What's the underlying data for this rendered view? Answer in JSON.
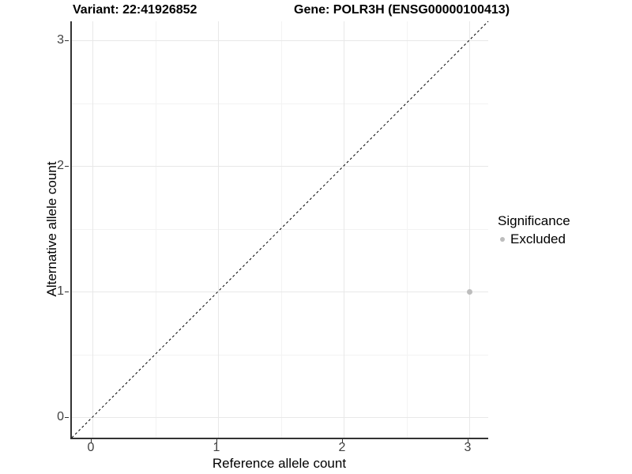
{
  "chart_data": {
    "type": "scatter",
    "title_variant": "Variant: 22:41926852",
    "title_gene": "Gene: POLR3H (ENSG00000100413)",
    "xlabel": "Reference allele count",
    "ylabel": "Alternative allele count",
    "x_ticks": [
      "0",
      "1",
      "2",
      "3"
    ],
    "y_ticks": [
      "0",
      "1",
      "2",
      "3"
    ],
    "x_tick_values": [
      0,
      1,
      2,
      3
    ],
    "y_tick_values": [
      0,
      1,
      2,
      3
    ],
    "xlim": [
      -0.17,
      3.17
    ],
    "ylim": [
      -0.17,
      3.17
    ],
    "grid": "major gridlines at integers, minor at half-integers, light grey on white",
    "reference_line": {
      "equation": "y = x",
      "style": "dashed",
      "color": "#000000"
    },
    "series": [
      {
        "name": "Excluded",
        "color": "#bdbdbd",
        "points": [
          {
            "x": 3,
            "y": 1
          }
        ]
      }
    ],
    "legend": {
      "title": "Significance",
      "position": "right",
      "entries": [
        {
          "label": "Excluded",
          "color": "#bdbdbd"
        }
      ]
    }
  },
  "colors": {
    "background": "#ffffff",
    "axis_line": "#333333",
    "tick_text": "#404040",
    "grid_major": "#e8e8e8",
    "grid_minor": "#f3f3f3",
    "excluded_point": "#bdbdbd"
  }
}
